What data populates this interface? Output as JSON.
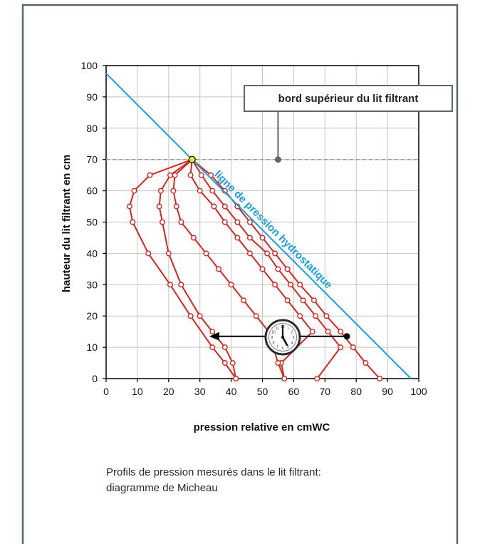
{
  "caption": {
    "line1": "Profils de pression mesurés dans le lit filtrant:",
    "line2": "diagramme de Micheau"
  },
  "colors": {
    "frame": "#5b6670",
    "profile": "#d7261e",
    "hydrostatic_line": "#1aa0dc",
    "bed_top_line": "#9a9a9a",
    "grid": "#c4c4c4",
    "marker_fill": "#ffffff",
    "apex_marker": "#f2e21d",
    "arrow": "#000000"
  },
  "icons": {
    "clock": "clock-icon"
  },
  "chart_data": {
    "type": "line",
    "xlabel": "pression relative en cmWC",
    "ylabel": "hauteur du lit filtrant en cm",
    "xlim": [
      0,
      100
    ],
    "ylim": [
      0,
      100
    ],
    "xticks": [
      0,
      10,
      20,
      30,
      40,
      50,
      60,
      70,
      80,
      90,
      100
    ],
    "yticks": [
      0,
      10,
      20,
      30,
      40,
      50,
      60,
      70,
      80,
      90,
      100
    ],
    "grid": true,
    "bed_top": {
      "y": 70,
      "label": "bord supérieur du lit filtrant"
    },
    "hydrostatic": {
      "label": "ligne de pression hydrostatique",
      "points": [
        [
          0,
          97.5
        ],
        [
          97.5,
          0
        ]
      ]
    },
    "apex": [
      27.5,
      70
    ],
    "profiles": [
      {
        "points": [
          [
            27.5,
            70
          ],
          [
            27.5,
            70
          ],
          [
            33.5,
            65
          ],
          [
            38,
            60
          ],
          [
            42,
            55
          ],
          [
            46,
            50
          ],
          [
            50,
            45
          ],
          [
            54,
            40
          ],
          [
            58,
            35
          ],
          [
            62,
            30
          ],
          [
            66.5,
            25
          ],
          [
            70.5,
            20
          ],
          [
            75,
            15
          ],
          [
            79,
            10
          ],
          [
            83,
            5
          ],
          [
            87.5,
            0
          ]
        ]
      },
      {
        "points": [
          [
            27.5,
            70
          ],
          [
            30.5,
            65
          ],
          [
            34,
            60
          ],
          [
            38,
            55
          ],
          [
            42,
            50
          ],
          [
            46,
            45
          ],
          [
            51.5,
            40
          ],
          [
            55,
            35
          ],
          [
            59,
            30
          ],
          [
            63,
            25
          ],
          [
            67,
            20
          ],
          [
            71,
            15
          ],
          [
            75,
            10
          ],
          [
            67.5,
            0
          ]
        ]
      },
      {
        "points": [
          [
            27.5,
            70
          ],
          [
            27,
            65
          ],
          [
            30,
            60
          ],
          [
            34.5,
            55
          ],
          [
            38,
            50
          ],
          [
            42,
            45
          ],
          [
            46,
            40
          ],
          [
            50,
            35
          ],
          [
            54,
            30
          ],
          [
            58,
            25
          ],
          [
            62,
            20
          ],
          [
            66,
            15
          ],
          [
            56,
            5
          ],
          [
            57,
            0
          ]
        ]
      },
      {
        "points": [
          [
            27.5,
            70
          ],
          [
            22,
            65
          ],
          [
            21.5,
            60
          ],
          [
            22.5,
            55
          ],
          [
            24,
            50
          ],
          [
            28,
            45
          ],
          [
            32,
            40
          ],
          [
            36,
            35
          ],
          [
            40,
            30
          ],
          [
            44,
            25
          ],
          [
            48,
            20
          ],
          [
            52,
            15
          ],
          [
            55,
            5
          ],
          [
            57,
            0
          ]
        ]
      },
      {
        "points": [
          [
            27.5,
            70
          ],
          [
            20.5,
            65
          ],
          [
            17.5,
            60
          ],
          [
            17,
            55
          ],
          [
            18,
            50
          ],
          [
            20,
            40
          ],
          [
            24,
            30
          ],
          [
            30,
            20
          ],
          [
            34,
            15
          ],
          [
            38,
            10
          ],
          [
            40.5,
            5
          ],
          [
            41.5,
            0
          ]
        ]
      },
      {
        "points": [
          [
            27.5,
            70
          ],
          [
            14,
            65
          ],
          [
            9,
            60
          ],
          [
            7.5,
            55
          ],
          [
            8.5,
            50
          ],
          [
            13.5,
            40
          ],
          [
            20.5,
            30
          ],
          [
            27,
            20
          ],
          [
            34,
            10
          ],
          [
            38,
            5
          ],
          [
            41.5,
            0
          ]
        ]
      }
    ],
    "flow_arrow": {
      "from": [
        77,
        13.5
      ],
      "to": [
        33,
        13.5
      ]
    }
  }
}
